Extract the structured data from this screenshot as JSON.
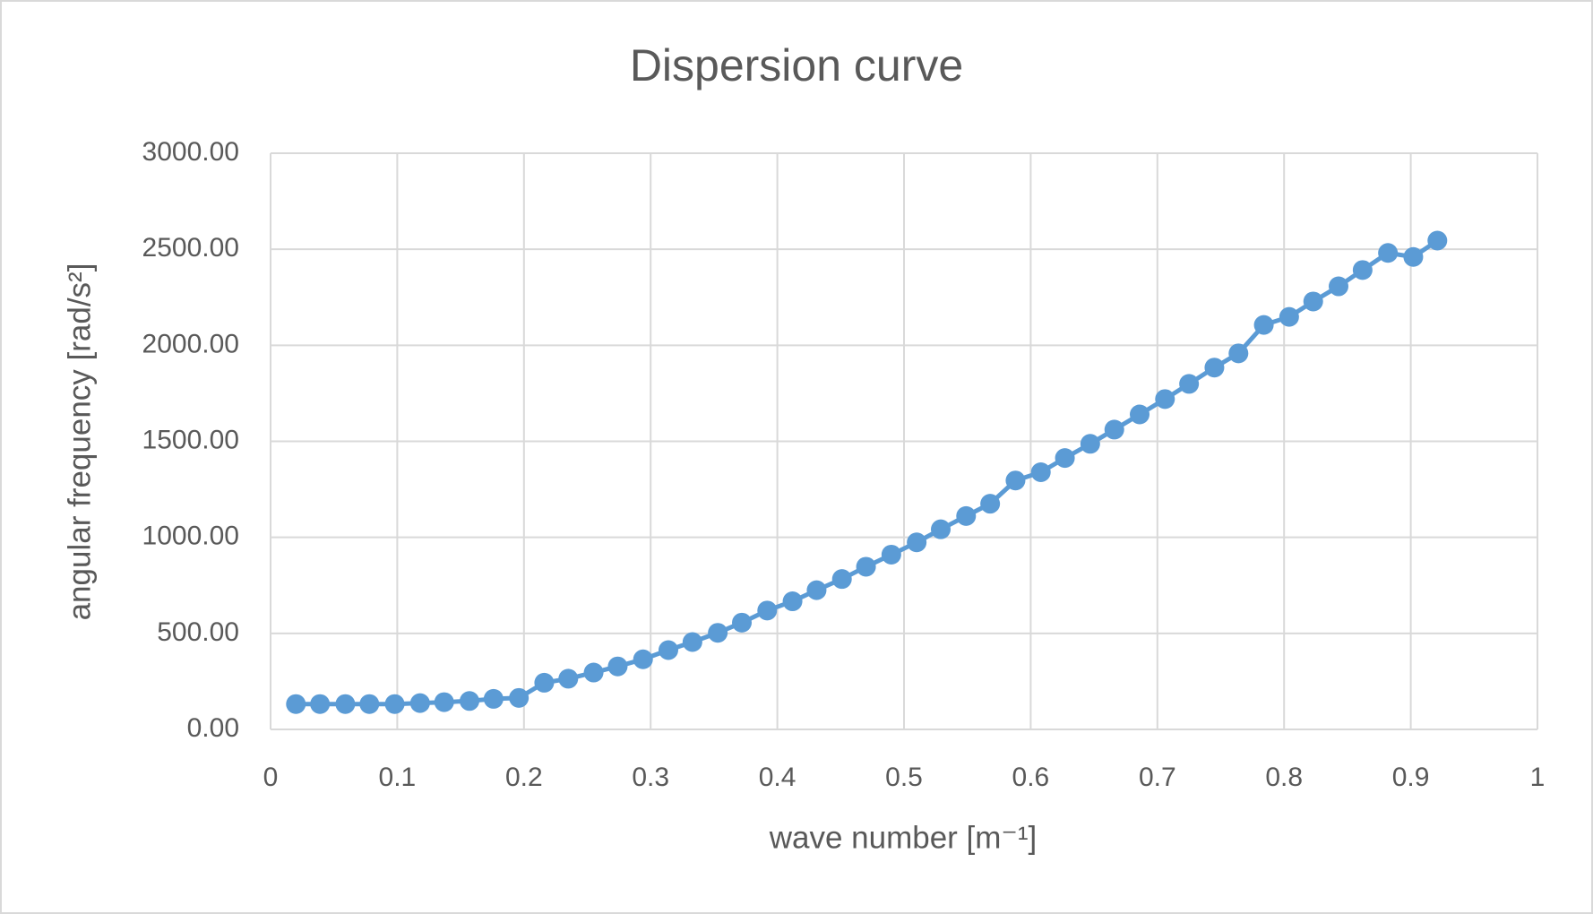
{
  "chart_data": {
    "type": "line",
    "title": "Dispersion curve",
    "x_label": "wave number [m⁻¹]",
    "y_label": "angular frequency [rad/s²]",
    "x": [
      0.02,
      0.039,
      0.059,
      0.078,
      0.098,
      0.118,
      0.137,
      0.157,
      0.176,
      0.196,
      0.216,
      0.235,
      0.255,
      0.274,
      0.294,
      0.314,
      0.333,
      0.353,
      0.372,
      0.392,
      0.412,
      0.431,
      0.451,
      0.47,
      0.49,
      0.51,
      0.529,
      0.549,
      0.568,
      0.588,
      0.608,
      0.627,
      0.647,
      0.666,
      0.686,
      0.706,
      0.725,
      0.745,
      0.764,
      0.784,
      0.804,
      0.823,
      0.843,
      0.862,
      0.882,
      0.902,
      0.921
    ],
    "series": [
      {
        "name": "angular frequency",
        "color": "#5b9bd5",
        "values": [
          132,
          132,
          132,
          132,
          132,
          137,
          142,
          148,
          159,
          164,
          243,
          264,
          296,
          328,
          365,
          413,
          455,
          503,
          556,
          619,
          667,
          725,
          783,
          847,
          910,
          974,
          1042,
          1111,
          1175,
          1296,
          1339,
          1413,
          1487,
          1561,
          1640,
          1720,
          1799,
          1884,
          1958,
          2106,
          2148,
          2228,
          2307,
          2392,
          2481,
          2460,
          2545
        ]
      }
    ],
    "xlim": [
      0,
      1
    ],
    "xticks": [
      0,
      0.1,
      0.2,
      0.3,
      0.4,
      0.5,
      0.6,
      0.7,
      0.8,
      0.9,
      1
    ],
    "ylim": [
      0,
      3000
    ],
    "yticks": [
      {
        "value": 0,
        "label": "0.00"
      },
      {
        "value": 500,
        "label": "500.00"
      },
      {
        "value": 1000,
        "label": "1000.00"
      },
      {
        "value": 1500,
        "label": "1500.00"
      },
      {
        "value": 2000,
        "label": "2000.00"
      },
      {
        "value": 2500,
        "label": "2500.00"
      },
      {
        "value": 3000,
        "label": "3000.00"
      }
    ],
    "grid": true
  }
}
